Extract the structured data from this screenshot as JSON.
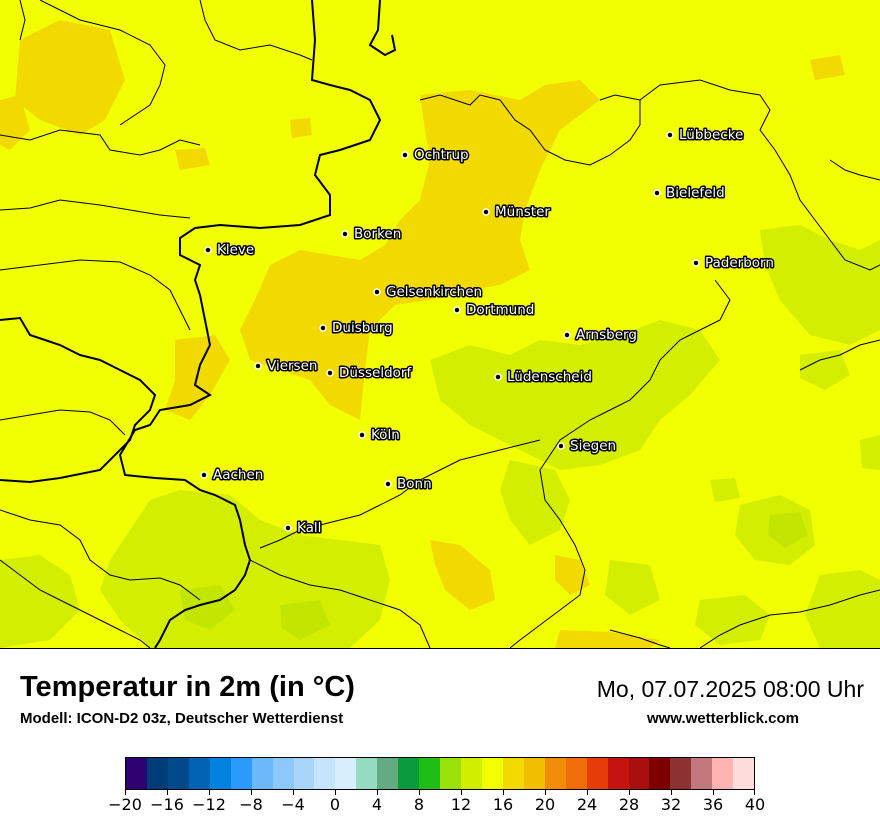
{
  "title": "Temperatur in 2m (in °C)",
  "model": "Modell: ICON-D2 03z, Deutscher Wetterdienst",
  "datetime": "Mo, 07.07.2025 08:00 Uhr",
  "website": "www.wetterblick.com",
  "colors": {
    "base_field": "#f2ff00",
    "warm_zone": "#f2d900",
    "cool_zone": "#d4ee00",
    "cooler_zone": "#c2e600",
    "borders": "#000000"
  },
  "cities": [
    {
      "name": "Lübbecke"
    },
    {
      "name": "Ochtrup"
    },
    {
      "name": "Bielefeld"
    },
    {
      "name": "Münster"
    },
    {
      "name": "Borken"
    },
    {
      "name": "Kleve"
    },
    {
      "name": "Paderborn"
    },
    {
      "name": "Gelsenkirchen"
    },
    {
      "name": "Dortmund"
    },
    {
      "name": "Duisburg"
    },
    {
      "name": "Arnsberg"
    },
    {
      "name": "Viersen"
    },
    {
      "name": "Düsseldorf"
    },
    {
      "name": "Lüdenscheid"
    },
    {
      "name": "Köln"
    },
    {
      "name": "Siegen"
    },
    {
      "name": "Aachen"
    },
    {
      "name": "Bonn"
    },
    {
      "name": "Kall"
    }
  ],
  "legend": {
    "colors": [
      "#2e0070",
      "#003c78",
      "#004a8c",
      "#0063b4",
      "#0082e0",
      "#2a9bfa",
      "#6cb9fa",
      "#8cc8fa",
      "#a8d6fb",
      "#c4e4fc",
      "#d9eefd",
      "#96dcc0",
      "#64aa82",
      "#0a9b3c",
      "#1ebe14",
      "#9be10a",
      "#d2ee00",
      "#f2ff00",
      "#f2d900",
      "#f2bf00",
      "#f08c0a",
      "#f06e0a",
      "#e63c0a",
      "#c3140f",
      "#aa0f0f",
      "#7d0000",
      "#8c3232",
      "#c3787d",
      "#ffb4b4",
      "#ffdcdc"
    ],
    "tick_labels": [
      "−20",
      "−16",
      "−12",
      "−8",
      "−4",
      "0",
      "4",
      "8",
      "12",
      "16",
      "20",
      "24",
      "28",
      "32",
      "36",
      "40"
    ],
    "min": -20,
    "max": 40
  }
}
